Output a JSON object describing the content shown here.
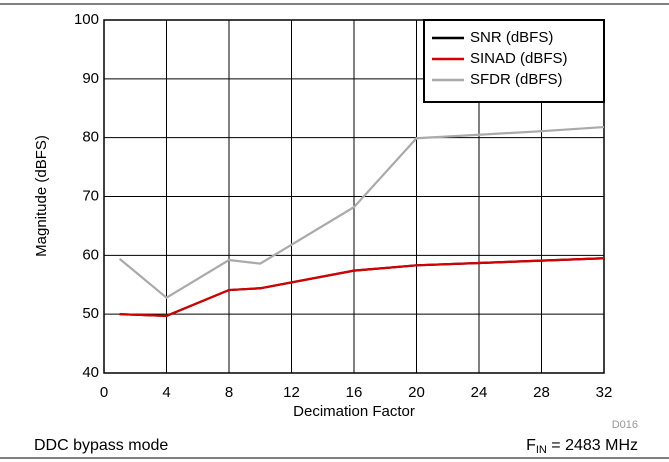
{
  "chart_data": {
    "type": "line",
    "x": [
      1,
      4,
      8,
      10,
      16,
      20,
      24,
      28,
      32
    ],
    "series": [
      {
        "name": "SNR (dBFS)",
        "color": "#000000",
        "values": [
          50.0,
          49.7,
          54.1,
          54.4,
          57.4,
          58.3,
          58.7,
          59.1,
          59.5
        ]
      },
      {
        "name": "SINAD (dBFS)",
        "color": "#d40000",
        "values": [
          50.0,
          49.7,
          54.1,
          54.4,
          57.4,
          58.3,
          58.7,
          59.1,
          59.5
        ]
      },
      {
        "name": "SFDR (dBFS)",
        "color": "#aaaaaa",
        "values": [
          59.4,
          52.8,
          59.2,
          58.6,
          68.2,
          79.9,
          80.5,
          81.1,
          81.8
        ]
      }
    ],
    "xlabel": "Decimation Factor",
    "ylabel": "Magnitude (dBFS)",
    "xlim": [
      0,
      32
    ],
    "xticks": [
      0,
      4,
      8,
      12,
      16,
      20,
      24,
      28,
      32
    ],
    "ylim": [
      40,
      100
    ],
    "yticks": [
      40,
      50,
      60,
      70,
      80,
      90,
      100
    ],
    "grid": true,
    "legend": "upper right",
    "figure_id": "D016",
    "caption_left": "DDC bypass mode",
    "caption_right": {
      "symbol": "F",
      "subscript": "IN",
      "text": " = 2483 MHz"
    }
  }
}
